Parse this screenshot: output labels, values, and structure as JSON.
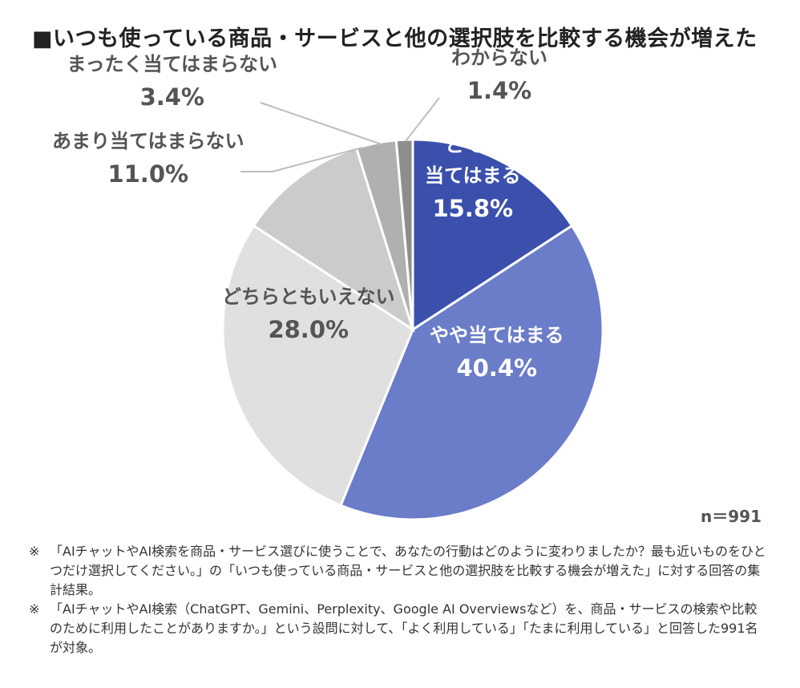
{
  "title": "■いつも使っている商品・サービスと他の選択肢を比較する機会が増えた",
  "n_label": "n＝991",
  "notes": [
    {
      "mark": "※",
      "text": "「AIチャットやAI検索を商品・サービス選びに使うことで、あなたの行動はどのように変わりましたか？最も近いものをひとつだけ選択してください。」の「いつも使っている商品・サービスと他の選択肢を比較する機会が増えた」に対する回答の集計結果。"
    },
    {
      "mark": "※",
      "text": "「AIチャットやAI検索（ChatGPT、Gemini、Perplexity、Google AI Overviewsなど）を、商品・サービスの検索や比較のために利用したことがありますか。」という設問に対して、「よく利用している」「たまに利用している」と回答した991名が対象。"
    }
  ],
  "chart_data": {
    "type": "pie",
    "title": "いつも使っている商品・サービスと他の選択肢を比較する機会が増えた",
    "slices": [
      {
        "label_lines": [
          "とても",
          "当てはまる"
        ],
        "label": "とても当てはまる",
        "value": 15.8,
        "value_text": "15.8%",
        "color": "#3b4fac",
        "text_color": "#ffffff"
      },
      {
        "label_lines": [
          "やや当てはまる"
        ],
        "label": "やや当てはまる",
        "value": 40.4,
        "value_text": "40.4%",
        "color": "#6b7cc8",
        "text_color": "#ffffff"
      },
      {
        "label_lines": [
          "どちらともいえない"
        ],
        "label": "どちらともいえない",
        "value": 28.0,
        "value_text": "28.0%",
        "color": "#e0e0e0",
        "text_color": "#555555"
      },
      {
        "label_lines": [
          "あまり当てはまらない"
        ],
        "label": "あまり当てはまらない",
        "value": 11.0,
        "value_text": "11.0%",
        "color": "#cbcbcb",
        "text_color": "#555555"
      },
      {
        "label_lines": [
          "まったく当てはまらない"
        ],
        "label": "まったく当てはまらない",
        "value": 3.4,
        "value_text": "3.4%",
        "color": "#b0b0b0",
        "text_color": "#555555"
      },
      {
        "label_lines": [
          "わからない"
        ],
        "label": "わからない",
        "value": 1.4,
        "value_text": "1.4%",
        "color": "#8e8e8e",
        "text_color": "#555555"
      }
    ],
    "start": "12 o'clock",
    "direction": "clockwise",
    "sample_size": "n＝991"
  }
}
